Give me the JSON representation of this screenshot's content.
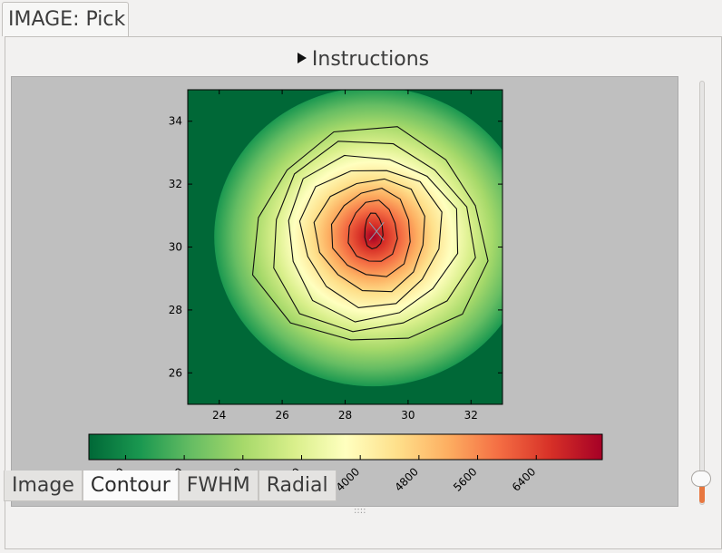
{
  "window": {
    "tab_title": "IMAGE: Pick"
  },
  "instructions": {
    "label": "Instructions"
  },
  "tabs": [
    {
      "label": "Image",
      "active": false
    },
    {
      "label": "Contour",
      "active": true
    },
    {
      "label": "FWHM",
      "active": false
    },
    {
      "label": "Radial",
      "active": false
    }
  ],
  "chart_data": {
    "type": "heatmap",
    "title": "",
    "xlabel": "",
    "ylabel": "",
    "xlim": [
      23,
      33
    ],
    "ylim": [
      25,
      35
    ],
    "x_ticks": [
      "24",
      "26",
      "28",
      "30",
      "32"
    ],
    "y_ticks": [
      "26",
      "28",
      "30",
      "32",
      "34"
    ],
    "peak": {
      "x": 29.0,
      "y": 30.5,
      "value": 7200
    },
    "background_level": 500,
    "contour_levels": [
      1200,
      2000,
      2800,
      3600,
      4400,
      5200,
      6000,
      6800
    ],
    "colormap": "RdYlGn_r",
    "colorbar": {
      "vmin": 300,
      "vmax": 7300,
      "ticks": [
        "800",
        "1600",
        "2400",
        "3200",
        "4000",
        "4800",
        "5600",
        "6400"
      ]
    },
    "colors": [
      "#006837",
      "#1a9850",
      "#66bd63",
      "#a6d96a",
      "#d9ef8b",
      "#ffffbf",
      "#fee08b",
      "#fdae61",
      "#f46d43",
      "#d73027",
      "#a50026"
    ]
  }
}
